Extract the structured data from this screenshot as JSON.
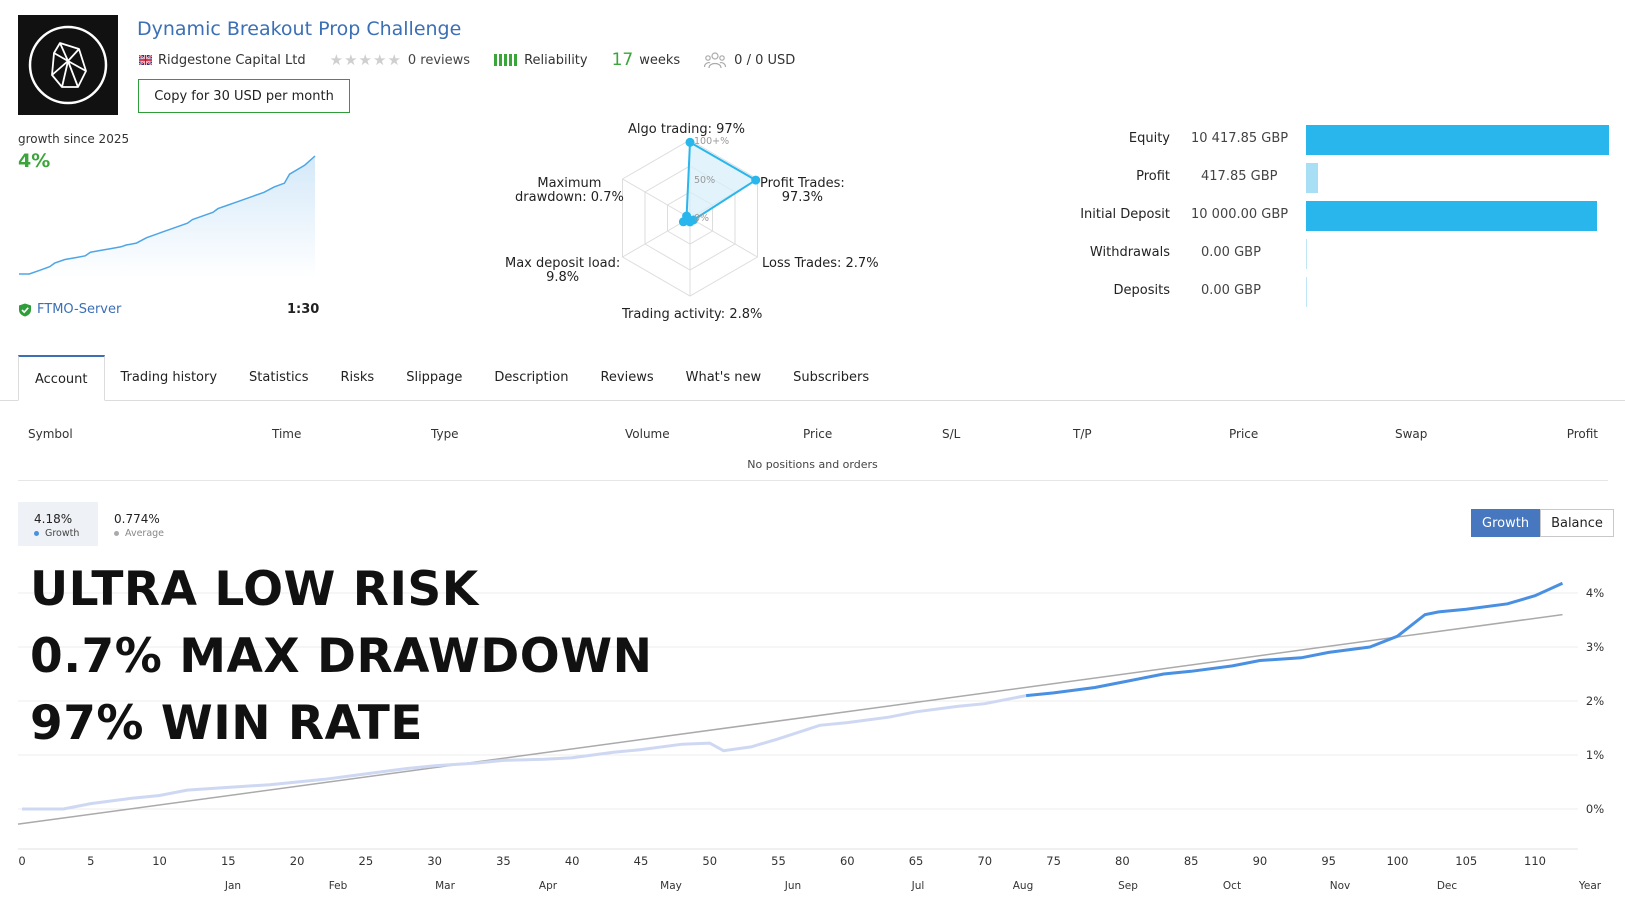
{
  "header": {
    "title": "Dynamic Breakout Prop Challenge",
    "broker": "Ridgestone Capital Ltd",
    "reviews": "0 reviews",
    "reliability": "Reliability",
    "weeks_num": "17",
    "weeks_label": "weeks",
    "subscribers": "0 / 0 USD",
    "copy_button": "Copy for 30 USD per month",
    "icons": [
      "logo-icon",
      "uk-flag-icon",
      "star-icon",
      "reliability-bars-icon",
      "subscribers-icon"
    ]
  },
  "growth_panel": {
    "label": "growth since 2025",
    "value": "4%",
    "server": "FTMO-Server",
    "leverage": "1:30",
    "server_icon": "verified-shield-icon"
  },
  "radar": {
    "algo": "Algo trading: 97%",
    "profit_trades_1": "Profit Trades:",
    "profit_trades_2": "97.3%",
    "loss_trades": "Loss Trades: 2.7%",
    "activity": "Trading activity: 2.8%",
    "deposit_load_1": "Max deposit load:",
    "deposit_load_2": "9.8%",
    "drawdown_1": "Maximum",
    "drawdown_2": "drawdown: 0.7%",
    "tick_100": "100+%",
    "tick_50": "50%",
    "tick_0": "0%"
  },
  "balance_bars": [
    {
      "label": "Equity",
      "value": "10 417.85 GBP",
      "fraction": 1.0,
      "color": "#29b6ec"
    },
    {
      "label": "Profit",
      "value": "417.85 GBP",
      "fraction": 0.04,
      "color": "#a9dff5"
    },
    {
      "label": "Initial Deposit",
      "value": "10 000.00 GBP",
      "fraction": 0.96,
      "color": "#29b6ec"
    },
    {
      "label": "Withdrawals",
      "value": "0.00 GBP",
      "fraction": 0.0,
      "color": "#29b6ec"
    },
    {
      "label": "Deposits",
      "value": "0.00 GBP",
      "fraction": 0.0,
      "color": "#29b6ec"
    }
  ],
  "tabs": [
    "Account",
    "Trading history",
    "Statistics",
    "Risks",
    "Slippage",
    "Description",
    "Reviews",
    "What's new",
    "Subscribers"
  ],
  "table": {
    "headers": [
      "Symbol",
      "Time",
      "Type",
      "Volume",
      "Price",
      "S/L",
      "T/P",
      "Price",
      "Swap",
      "Profit"
    ],
    "empty": "No positions and orders"
  },
  "chart_header": {
    "growth_value": "4.18%",
    "growth_label": "Growth",
    "average_value": "0.774%",
    "average_label": "Average",
    "toggle": [
      "Growth",
      "Balance"
    ]
  },
  "headlines": [
    "ULTRA LOW RISK",
    "0.7% MAX DRAWDOWN",
    "97% WIN RATE"
  ],
  "chart_data": {
    "type": "line",
    "x_ticks": [
      "0",
      "5",
      "10",
      "15",
      "20",
      "25",
      "30",
      "35",
      "40",
      "45",
      "50",
      "55",
      "60",
      "65",
      "70",
      "75",
      "80",
      "85",
      "90",
      "95",
      "100",
      "105",
      "110"
    ],
    "month_ticks": [
      "Jan",
      "Feb",
      "Mar",
      "Apr",
      "May",
      "Jun",
      "Jul",
      "Aug",
      "Sep",
      "Oct",
      "Nov",
      "Dec",
      "Year"
    ],
    "y_ticks": [
      "4%",
      "3%",
      "2%",
      "1%",
      "0%"
    ],
    "ylim": [
      -0.3,
      4.3
    ],
    "xlim": [
      0,
      113
    ],
    "series": [
      {
        "name": "Growth",
        "color": "#4a90e2",
        "x": [
          0,
          3,
          5,
          8,
          10,
          12,
          15,
          18,
          20,
          22,
          25,
          28,
          30,
          33,
          35,
          38,
          40,
          43,
          45,
          48,
          50,
          51,
          53,
          55,
          58,
          60,
          63,
          65,
          68,
          70,
          73,
          75,
          78,
          80,
          83,
          85,
          88,
          90,
          93,
          95,
          98,
          100,
          102,
          103,
          105,
          108,
          110,
          112
        ],
        "y": [
          0,
          0,
          0.1,
          0.2,
          0.25,
          0.35,
          0.4,
          0.45,
          0.5,
          0.55,
          0.65,
          0.75,
          0.8,
          0.85,
          0.9,
          0.92,
          0.95,
          1.05,
          1.1,
          1.2,
          1.22,
          1.08,
          1.15,
          1.3,
          1.55,
          1.6,
          1.7,
          1.8,
          1.9,
          1.95,
          2.1,
          2.15,
          2.25,
          2.35,
          2.5,
          2.55,
          2.65,
          2.75,
          2.8,
          2.9,
          3.0,
          3.2,
          3.6,
          3.65,
          3.7,
          3.8,
          3.95,
          4.18
        ]
      },
      {
        "name": "Average",
        "color": "#aaaaaa",
        "x": [
          0,
          112
        ],
        "y": [
          -0.28,
          3.6
        ]
      }
    ]
  },
  "mini_chart": {
    "x": [
      0,
      10,
      20,
      30,
      35,
      45,
      55,
      65,
      70,
      80,
      90,
      100,
      105,
      115,
      125,
      135,
      140,
      155,
      165,
      170,
      180,
      190,
      195,
      205,
      210,
      220,
      230,
      240,
      250,
      260,
      265,
      280,
      290
    ],
    "y": [
      0,
      0,
      0.02,
      0.04,
      0.06,
      0.08,
      0.09,
      0.1,
      0.12,
      0.13,
      0.14,
      0.15,
      0.16,
      0.17,
      0.2,
      0.22,
      0.23,
      0.26,
      0.28,
      0.3,
      0.32,
      0.34,
      0.36,
      0.38,
      0.39,
      0.41,
      0.43,
      0.45,
      0.48,
      0.5,
      0.55,
      0.6,
      0.65
    ]
  }
}
